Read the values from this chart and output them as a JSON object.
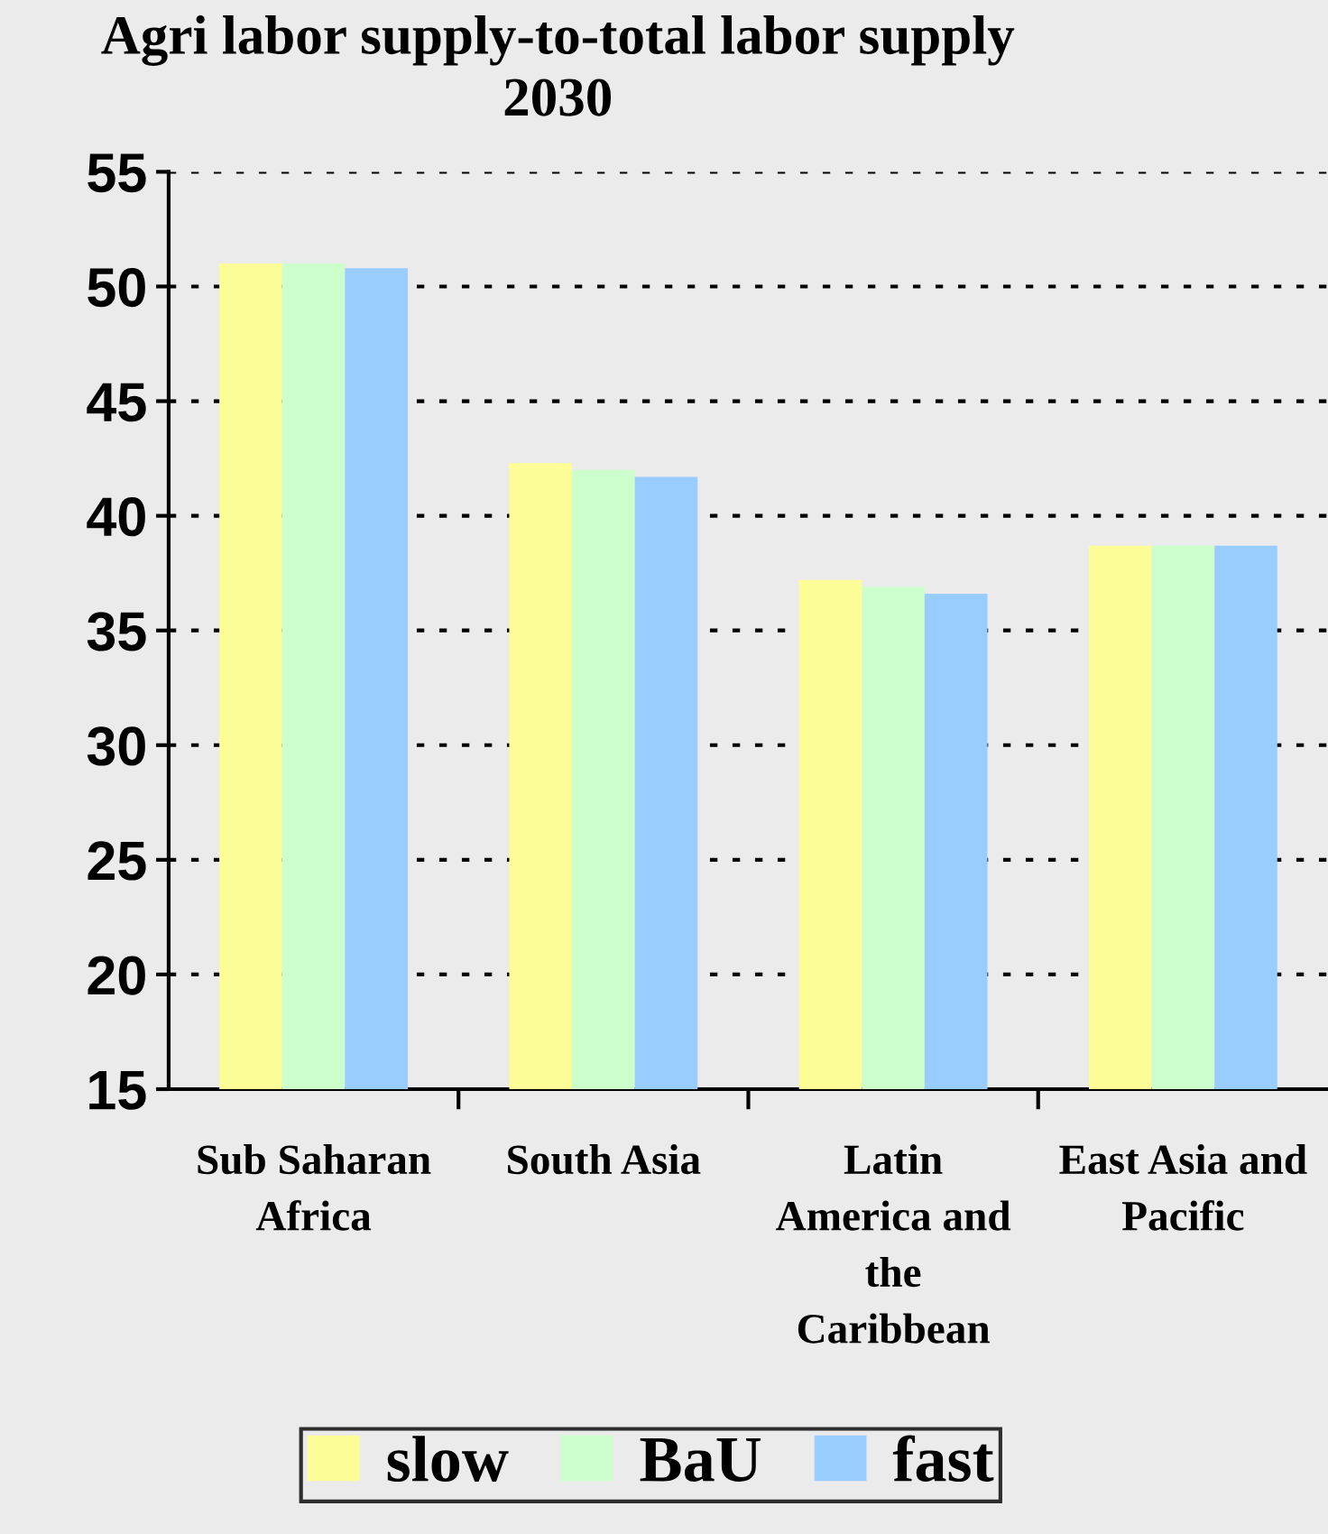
{
  "chart_data": {
    "type": "bar",
    "title": "Agri labor supply-to-total labor supply 2030",
    "categories": [
      "Sub Saharan Africa",
      "South Asia",
      "Latin America and the Caribbean",
      "East Asia and Pacific"
    ],
    "series": [
      {
        "name": "slow",
        "color": "#fdfd98",
        "values": [
          51.0,
          42.3,
          37.2,
          38.7
        ]
      },
      {
        "name": "BaU",
        "color": "#ccffcc",
        "values": [
          51.0,
          42.0,
          36.9,
          38.7
        ]
      },
      {
        "name": "fast",
        "color": "#99ccff",
        "values": [
          50.8,
          41.7,
          36.6,
          38.7
        ]
      }
    ],
    "ylim": [
      15,
      55
    ],
    "yticks": [
      15,
      20,
      25,
      30,
      35,
      40,
      45,
      50,
      55
    ],
    "grid": "y",
    "legend": "bottom"
  }
}
